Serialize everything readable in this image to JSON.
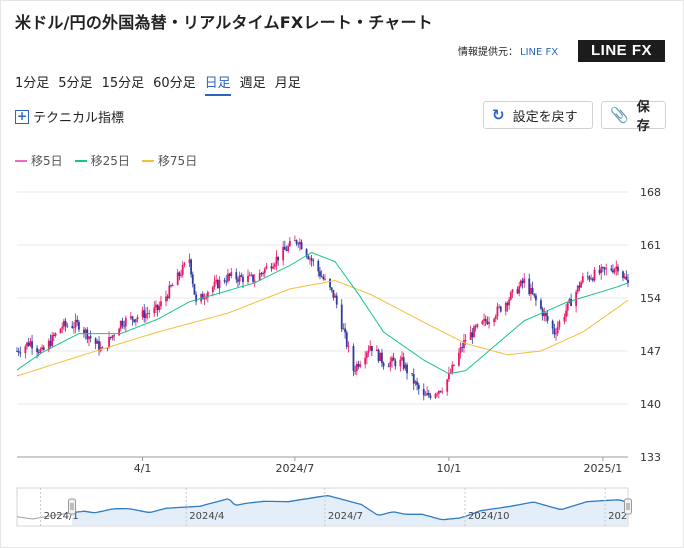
{
  "header": {
    "title": "米ドル/円の外国為替・リアルタイムFXレート・チャート",
    "provider_label": "情報提供元：",
    "provider_link": "LINE FX",
    "badge": "LINE FX"
  },
  "periods": [
    {
      "label": "1分足",
      "active": false
    },
    {
      "label": "5分足",
      "active": false
    },
    {
      "label": "15分足",
      "active": false
    },
    {
      "label": "60分足",
      "active": false
    },
    {
      "label": "日足",
      "active": true
    },
    {
      "label": "週足",
      "active": false
    },
    {
      "label": "月足",
      "active": false
    }
  ],
  "toolbar": {
    "technical_label": "テクニカル指標",
    "reset_label": "設定を戻す",
    "save_label": "保存"
  },
  "colors": {
    "up": "#e6196b",
    "down": "#2e3b9e",
    "ma5": "#e66bd0",
    "ma25": "#16c48a",
    "ma75": "#f2bf3a",
    "accent": "#2b64c5",
    "navigator_line": "#2f7cc4"
  },
  "chart_data": {
    "type": "candlestick",
    "series": [
      {
        "name": "移5日"
      },
      {
        "name": "移25日"
      },
      {
        "name": "移75日"
      }
    ],
    "y_ticks": [
      168,
      161,
      154,
      147,
      140,
      133
    ],
    "ylim": [
      133,
      168
    ],
    "x_ticks": [
      "4/1",
      "2024/7",
      "10/1",
      "2025/1"
    ],
    "navigator_ticks": [
      "2024/1",
      "2024/4",
      "2024/7",
      "2024/10",
      "202"
    ],
    "close_anchors": [
      {
        "date": "2024-01-17",
        "close": 147.0
      },
      {
        "date": "2024-01-25",
        "close": 148.2
      },
      {
        "date": "2024-02-01",
        "close": 146.8
      },
      {
        "date": "2024-02-13",
        "close": 150.3
      },
      {
        "date": "2024-02-23",
        "close": 150.5
      },
      {
        "date": "2024-03-08",
        "close": 147.0
      },
      {
        "date": "2024-03-19",
        "close": 150.8
      },
      {
        "date": "2024-04-10",
        "close": 152.5
      },
      {
        "date": "2024-04-29",
        "close": 159.2
      },
      {
        "date": "2024-05-03",
        "close": 153.2
      },
      {
        "date": "2024-05-10",
        "close": 155.0
      },
      {
        "date": "2024-05-22",
        "close": 156.8
      },
      {
        "date": "2024-06-07",
        "close": 156.5
      },
      {
        "date": "2024-06-28",
        "close": 160.9
      },
      {
        "date": "2024-07-03",
        "close": 161.7
      },
      {
        "date": "2024-07-11",
        "close": 159.0
      },
      {
        "date": "2024-07-25",
        "close": 154.0
      },
      {
        "date": "2024-08-05",
        "close": 144.5
      },
      {
        "date": "2024-08-15",
        "close": 147.8
      },
      {
        "date": "2024-08-23",
        "close": 145.5
      },
      {
        "date": "2024-09-03",
        "close": 145.5
      },
      {
        "date": "2024-09-16",
        "close": 140.8
      },
      {
        "date": "2024-09-27",
        "close": 142.2
      },
      {
        "date": "2024-10-01",
        "close": 143.6
      },
      {
        "date": "2024-10-11",
        "close": 148.6
      },
      {
        "date": "2024-10-31",
        "close": 152.5
      },
      {
        "date": "2024-11-15",
        "close": 156.2
      },
      {
        "date": "2024-12-03",
        "close": 149.5
      },
      {
        "date": "2024-12-20",
        "close": 156.5
      },
      {
        "date": "2025-01-10",
        "close": 158.2
      },
      {
        "date": "2025-01-16",
        "close": 155.8
      }
    ],
    "ma5_anchors": [
      {
        "date": "2024-01-17",
        "v": 146.8
      },
      {
        "date": "2024-02-01",
        "v": 147.5
      },
      {
        "date": "2024-02-23",
        "v": 150.3
      },
      {
        "date": "2024-03-08",
        "v": 147.6
      },
      {
        "date": "2024-04-10",
        "v": 152.0
      },
      {
        "date": "2024-04-29",
        "v": 156.9
      },
      {
        "date": "2024-05-10",
        "v": 154.8
      },
      {
        "date": "2024-06-28",
        "v": 160.5
      },
      {
        "date": "2024-07-03",
        "v": 161.0
      },
      {
        "date": "2024-07-25",
        "v": 155.0
      },
      {
        "date": "2024-08-08",
        "v": 146.2
      },
      {
        "date": "2024-09-16",
        "v": 141.7
      },
      {
        "date": "2024-10-11",
        "v": 147.9
      },
      {
        "date": "2024-11-15",
        "v": 155.5
      },
      {
        "date": "2024-12-03",
        "v": 150.3
      },
      {
        "date": "2025-01-10",
        "v": 157.8
      },
      {
        "date": "2025-01-16",
        "v": 157.0
      }
    ],
    "ma25_anchors": [
      {
        "date": "2024-01-17",
        "v": 144.5
      },
      {
        "date": "2024-02-01",
        "v": 146.8
      },
      {
        "date": "2024-02-23",
        "v": 149.3
      },
      {
        "date": "2024-03-19",
        "v": 149.3
      },
      {
        "date": "2024-04-10",
        "v": 151.2
      },
      {
        "date": "2024-04-29",
        "v": 153.5
      },
      {
        "date": "2024-06-07",
        "v": 156.0
      },
      {
        "date": "2024-06-28",
        "v": 158.3
      },
      {
        "date": "2024-07-11",
        "v": 160.0
      },
      {
        "date": "2024-07-25",
        "v": 158.8
      },
      {
        "date": "2024-08-08",
        "v": 154.5
      },
      {
        "date": "2024-08-23",
        "v": 149.5
      },
      {
        "date": "2024-09-16",
        "v": 145.8
      },
      {
        "date": "2024-10-01",
        "v": 144.0
      },
      {
        "date": "2024-10-11",
        "v": 144.4
      },
      {
        "date": "2024-11-15",
        "v": 151.0
      },
      {
        "date": "2024-12-10",
        "v": 153.4
      },
      {
        "date": "2025-01-10",
        "v": 155.5
      },
      {
        "date": "2025-01-16",
        "v": 156.0
      }
    ],
    "ma75_anchors": [
      {
        "date": "2024-01-17",
        "v": 143.7
      },
      {
        "date": "2024-02-23",
        "v": 146.3
      },
      {
        "date": "2024-04-10",
        "v": 149.5
      },
      {
        "date": "2024-05-22",
        "v": 152.0
      },
      {
        "date": "2024-06-28",
        "v": 155.2
      },
      {
        "date": "2024-07-25",
        "v": 156.3
      },
      {
        "date": "2024-08-15",
        "v": 154.5
      },
      {
        "date": "2024-09-16",
        "v": 150.8
      },
      {
        "date": "2024-10-11",
        "v": 148.0
      },
      {
        "date": "2024-11-05",
        "v": 146.5
      },
      {
        "date": "2024-11-25",
        "v": 147.0
      },
      {
        "date": "2024-12-20",
        "v": 149.5
      },
      {
        "date": "2025-01-16",
        "v": 153.7
      }
    ]
  }
}
